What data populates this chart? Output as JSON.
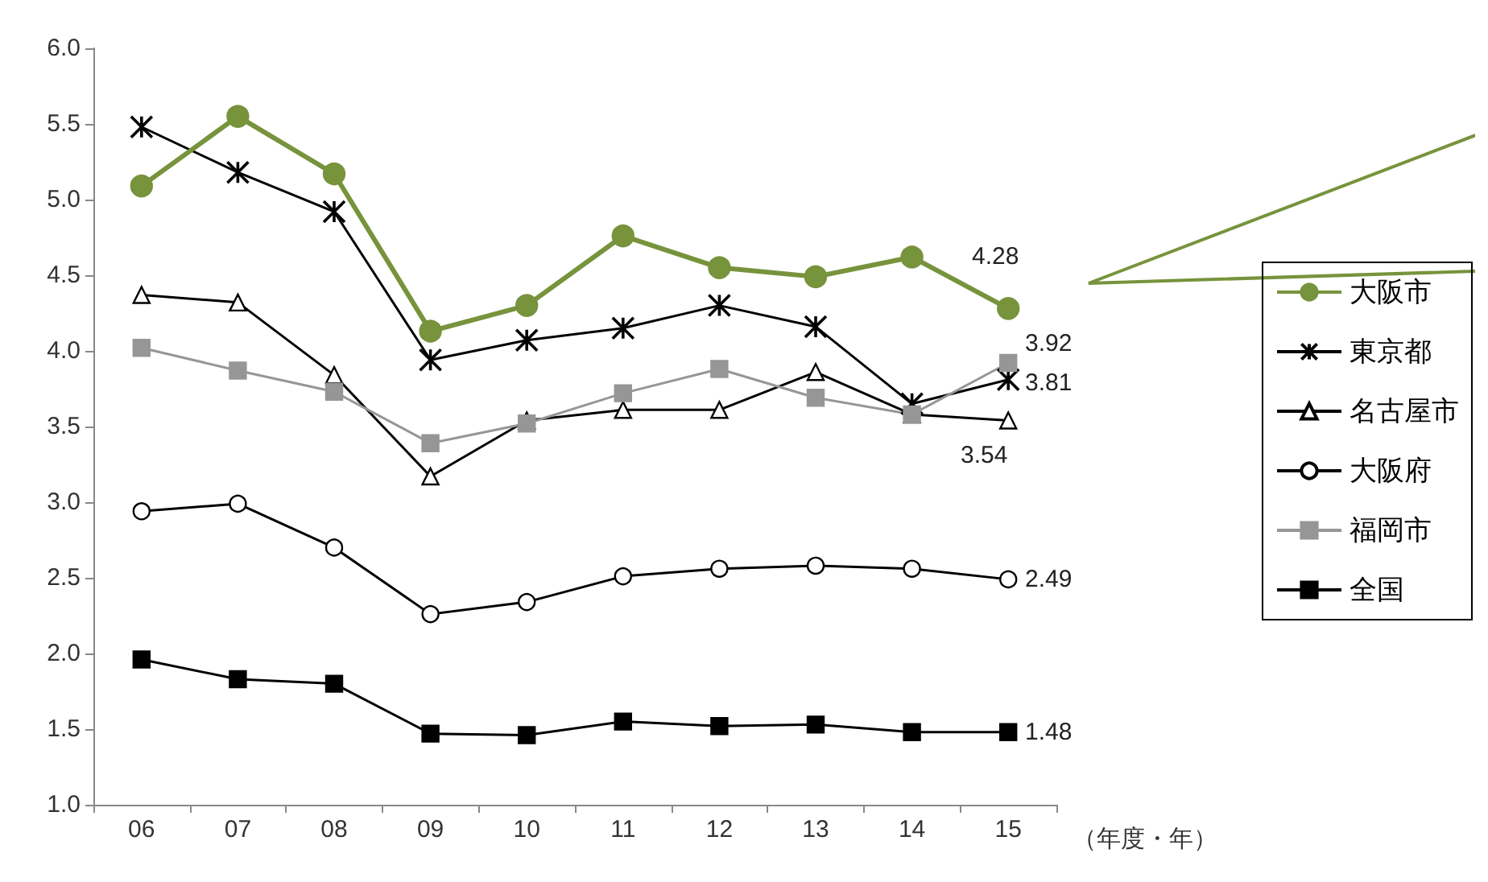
{
  "chart_data": {
    "type": "line",
    "categories": [
      "06",
      "07",
      "08",
      "09",
      "10",
      "11",
      "12",
      "13",
      "14",
      "15"
    ],
    "xlabel": "（年度・年）",
    "series": [
      {
        "name": "大阪市",
        "color": "#77933c",
        "marker": "circle",
        "values": [
          5.09,
          5.55,
          5.17,
          4.13,
          4.3,
          4.76,
          4.55,
          4.49,
          4.62,
          4.28
        ],
        "value_labels": [
          null,
          null,
          null,
          null,
          null,
          null,
          null,
          null,
          null,
          "4.28"
        ]
      },
      {
        "name": "東京都",
        "color": "#000000",
        "marker": "cross",
        "values": [
          5.48,
          5.18,
          4.92,
          3.94,
          4.07,
          4.15,
          4.3,
          4.16,
          3.65,
          3.81
        ],
        "value_labels": [
          null,
          null,
          null,
          null,
          null,
          null,
          null,
          null,
          null,
          "3.81"
        ]
      },
      {
        "name": "名古屋市",
        "color": "#000000",
        "marker": "triangle",
        "values": [
          4.37,
          4.32,
          3.84,
          3.17,
          3.54,
          3.61,
          3.61,
          3.86,
          3.58,
          3.54
        ],
        "value_labels": [
          null,
          null,
          null,
          null,
          null,
          null,
          null,
          null,
          null,
          "3.54"
        ]
      },
      {
        "name": "大阪府",
        "color": "#000000",
        "marker": "circle",
        "values": [
          2.94,
          2.99,
          2.7,
          2.26,
          2.34,
          2.51,
          2.56,
          2.58,
          2.56,
          2.49
        ],
        "value_labels": [
          null,
          null,
          null,
          null,
          null,
          null,
          null,
          null,
          null,
          "2.49"
        ]
      },
      {
        "name": "福岡市",
        "color": "#969696",
        "marker": "square",
        "values": [
          4.02,
          3.87,
          3.73,
          3.39,
          3.52,
          3.72,
          3.88,
          3.69,
          3.58,
          3.92
        ],
        "value_labels": [
          null,
          null,
          null,
          null,
          null,
          null,
          null,
          null,
          null,
          "3.92"
        ]
      },
      {
        "name": "全国",
        "color": "#000000",
        "marker": "square",
        "values": [
          1.96,
          1.83,
          1.8,
          1.47,
          1.46,
          1.55,
          1.52,
          1.53,
          1.48,
          1.48
        ],
        "value_labels": [
          null,
          null,
          null,
          null,
          null,
          null,
          null,
          null,
          null,
          "1.48"
        ]
      }
    ],
    "ylim": [
      1,
      6
    ],
    "yticks": [
      {
        "value": 1,
        "label": "1.0"
      },
      {
        "value": 1.5,
        "label": "1.5"
      },
      {
        "value": 2,
        "label": "2.0"
      },
      {
        "value": 2.5,
        "label": "2.5"
      },
      {
        "value": 3,
        "label": "3.0"
      },
      {
        "value": 3.5,
        "label": "3.5"
      },
      {
        "value": 4,
        "label": "4.0"
      },
      {
        "value": 4.5,
        "label": "4.5"
      },
      {
        "value": 5,
        "label": "5.0"
      },
      {
        "value": 5.5,
        "label": "5.5"
      },
      {
        "value": 6,
        "label": "6.0"
      }
    ],
    "grid": false,
    "legend": "right"
  }
}
